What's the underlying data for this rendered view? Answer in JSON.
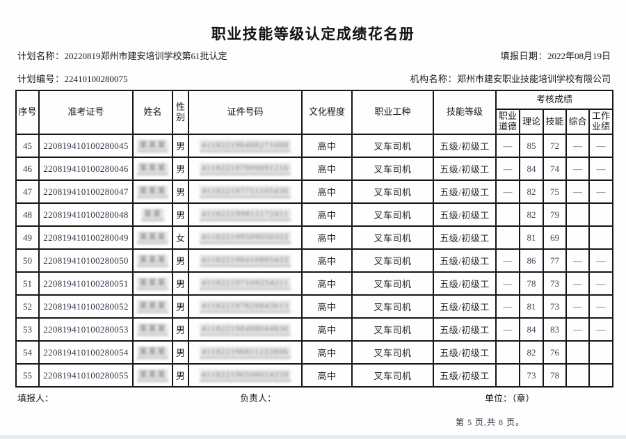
{
  "title": "职业技能等级认定成绩花名册",
  "meta": {
    "plan_name_label": "计划名称：",
    "plan_name": "20220819郑州市建安培训学校第61批认定",
    "report_date_label": "填报日期：",
    "report_date": "2022年08月19日",
    "plan_no_label": "计划编号：",
    "plan_no": "22410100280075",
    "org_label": "机构名称：",
    "org_name": "郑州市建安职业技能培训学校有限公司"
  },
  "table": {
    "headers": {
      "seq": "序号",
      "exam_no": "准考证号",
      "name": "姓名",
      "gender": "性别",
      "id_no": "证件号码",
      "education": "文化程度",
      "occupation": "职业工种",
      "skill_level": "技能等级",
      "score_group": "考核成绩",
      "score_cols": [
        "职业道德",
        "理论",
        "技能",
        "综合",
        "工作业绩"
      ]
    },
    "rows": [
      {
        "seq": "45",
        "exam_no": "220819410100280045",
        "name_masked": "某某某",
        "gender": "男",
        "id_masked": "411822196408271008",
        "education": "高中",
        "occupation": "叉车司机",
        "skill_level": "五级/初级工",
        "scores": [
          "—",
          "85",
          "72",
          "—",
          "—"
        ]
      },
      {
        "seq": "46",
        "exam_no": "220819410100280046",
        "name_masked": "某某某",
        "gender": "男",
        "id_masked": "411822197909091216",
        "education": "高中",
        "occupation": "叉车司机",
        "skill_level": "五级/初级工",
        "scores": [
          "—",
          "84",
          "74",
          "—",
          "—"
        ]
      },
      {
        "seq": "47",
        "exam_no": "220819410100280047",
        "name_masked": "某某某",
        "gender": "男",
        "id_masked": "411822197711105436",
        "education": "高中",
        "occupation": "叉车司机",
        "skill_level": "五级/初级工",
        "scores": [
          "—",
          "82",
          "75",
          "—",
          "—"
        ]
      },
      {
        "seq": "48",
        "exam_no": "220819410100280048",
        "name_masked": "某某",
        "gender": "男",
        "id_masked": "411822199812172411",
        "education": "高中",
        "occupation": "叉车司机",
        "skill_level": "五级/初级工",
        "scores": [
          "",
          "82",
          "79",
          "",
          ""
        ]
      },
      {
        "seq": "49",
        "exam_no": "220819410100280049",
        "name_masked": "某某某",
        "gender": "女",
        "id_masked": "411822199509050322",
        "education": "高中",
        "occupation": "叉车司机",
        "skill_level": "五级/初级工",
        "scores": [
          "",
          "81",
          "69",
          "",
          ""
        ]
      },
      {
        "seq": "50",
        "exam_no": "220819410100280050",
        "name_masked": "某某某",
        "gender": "男",
        "id_masked": "411822198410805433",
        "education": "高中",
        "occupation": "叉车司机",
        "skill_level": "五级/初级工",
        "scores": [
          "—",
          "86",
          "77",
          "—",
          "—"
        ]
      },
      {
        "seq": "51",
        "exam_no": "220819410100280051",
        "name_masked": "某某某",
        "gender": "男",
        "id_masked": "411822197109254211",
        "education": "高中",
        "occupation": "叉车司机",
        "skill_level": "五级/初级工",
        "scores": [
          "—",
          "78",
          "73",
          "—",
          "—"
        ]
      },
      {
        "seq": "52",
        "exam_no": "220819410100280052",
        "name_masked": "某某某",
        "gender": "男",
        "id_masked": "411822197820843613",
        "education": "高中",
        "occupation": "叉车司机",
        "skill_level": "五级/初级工",
        "scores": [
          "—",
          "81",
          "73",
          "—",
          "—"
        ]
      },
      {
        "seq": "53",
        "exam_no": "220819410100280053",
        "name_masked": "某某某",
        "gender": "男",
        "id_masked": "411822198408044836",
        "education": "高中",
        "occupation": "叉车司机",
        "skill_level": "五级/初级工",
        "scores": [
          "—",
          "84",
          "83",
          "—",
          "—"
        ]
      },
      {
        "seq": "54",
        "exam_no": "220819410100280054",
        "name_masked": "某某某",
        "gender": "男",
        "id_masked": "411822196811222806",
        "education": "高中",
        "occupation": "叉车司机",
        "skill_level": "五级/初级工",
        "scores": [
          "",
          "82",
          "76",
          "",
          ""
        ]
      },
      {
        "seq": "55",
        "exam_no": "220819410100280055",
        "name_masked": "某某某",
        "gender": "男",
        "id_masked": "411822196508024259",
        "education": "高中",
        "occupation": "叉车司机",
        "skill_level": "五级/初级工",
        "scores": [
          "",
          "73",
          "78",
          "",
          ""
        ]
      }
    ]
  },
  "footer": {
    "filler_label": "填报人：",
    "manager_label": "负责人：",
    "unit_label": "单位：（章）",
    "page_info": "第 5 页,共 8 页。"
  },
  "colors": {
    "border": "#151515",
    "text": "#1f2227",
    "score_text": "#3d4a5c",
    "masked_bg": "#e7e7e7",
    "bottom_strip": "#e9edef"
  }
}
